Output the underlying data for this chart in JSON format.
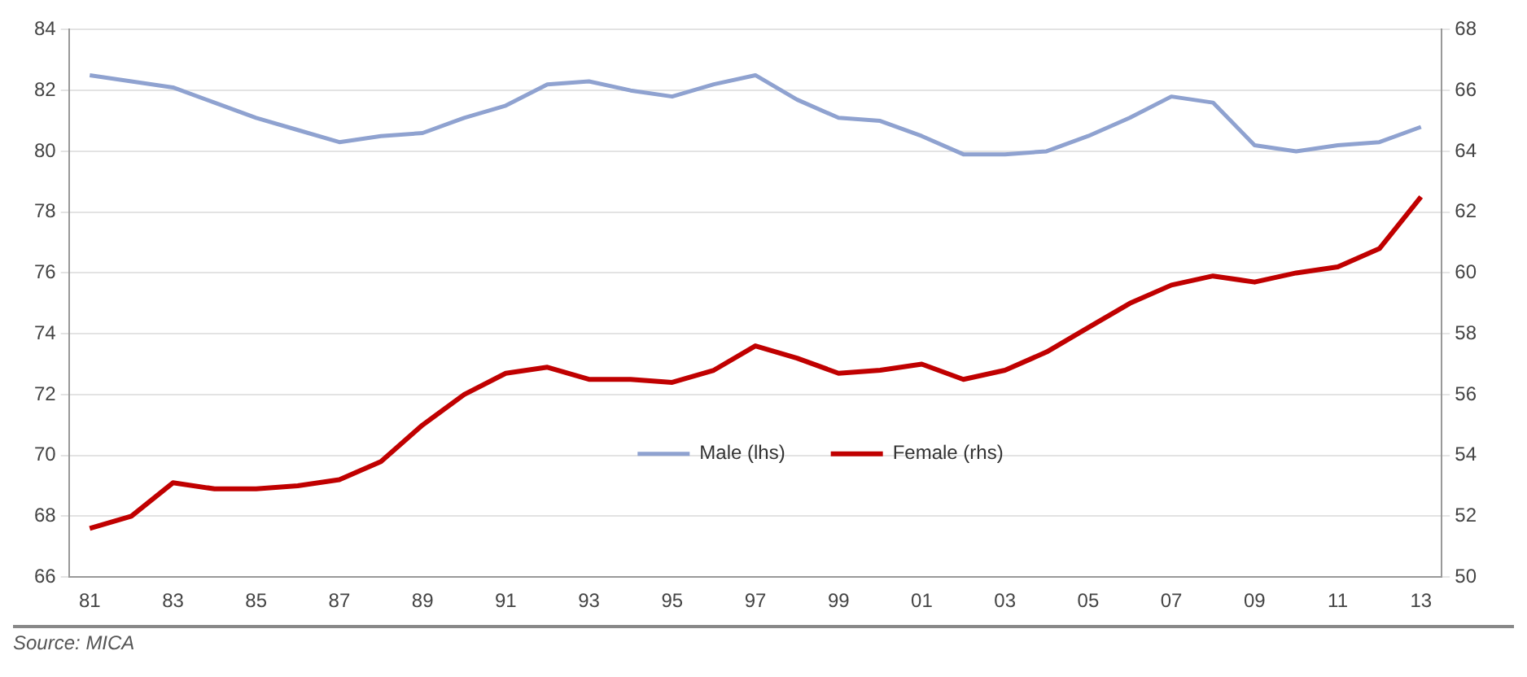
{
  "chart_data": {
    "type": "line",
    "categories": [
      "81",
      null,
      "83",
      null,
      "85",
      null,
      "87",
      null,
      "89",
      null,
      "91",
      null,
      "93",
      null,
      "95",
      null,
      "97",
      null,
      "99",
      null,
      "01",
      null,
      "03",
      null,
      "05",
      null,
      "07",
      null,
      "09",
      null,
      "11",
      null,
      "13"
    ],
    "series": [
      {
        "name": "Male (lhs)",
        "color": "#8fa2d0",
        "values": [
          82.5,
          82.3,
          82.1,
          81.6,
          81.1,
          80.7,
          80.3,
          80.5,
          80.6,
          81.1,
          81.5,
          82.2,
          82.3,
          82.0,
          81.8,
          82.2,
          82.5,
          81.7,
          81.1,
          81.0,
          80.5,
          79.9,
          79.9,
          80.0,
          80.5,
          81.1,
          81.8,
          81.6,
          80.2,
          80.0,
          80.2,
          80.3,
          80.8
        ]
      },
      {
        "name": "Female (rhs)",
        "color": "#c00000",
        "axis": "y2",
        "values": [
          51.6,
          52.0,
          53.1,
          52.9,
          52.9,
          53.0,
          53.2,
          53.8,
          55.0,
          56.0,
          56.7,
          56.9,
          56.5,
          56.5,
          56.4,
          56.8,
          57.6,
          57.2,
          56.7,
          56.8,
          57.0,
          56.5,
          56.8,
          57.4,
          58.2,
          59.0,
          59.6,
          59.9,
          59.7,
          60.0,
          60.2,
          60.8,
          62.5
        ]
      }
    ],
    "ylim": [
      66,
      84
    ],
    "yticks": [
      66,
      68,
      70,
      72,
      74,
      76,
      78,
      80,
      82,
      84
    ],
    "y2lim": [
      50,
      68
    ],
    "y2ticks": [
      50,
      52,
      54,
      56,
      58,
      60,
      62,
      64,
      66,
      68
    ],
    "grid": "y",
    "legend": "bottom",
    "marker": "none",
    "line_style": "solid",
    "annotations": [
      "Source: MICA"
    ]
  }
}
